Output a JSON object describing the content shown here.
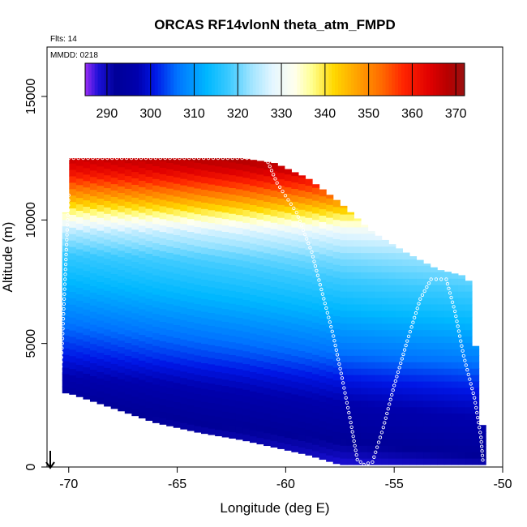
{
  "chart_data": {
    "type": "heatmap",
    "title": "ORCAS RF14vlonN theta_atm_FMPD",
    "annotations": {
      "flights": "Flts: 14",
      "date": "MMDD: 0218"
    },
    "xlabel": "Longitude (deg E)",
    "ylabel": "Altitude (m)",
    "xlim": [
      -71,
      -50
    ],
    "ylim": [
      0,
      17000
    ],
    "x_ticks": [
      -70,
      -65,
      -60,
      -55,
      -50
    ],
    "x_tick_labels": [
      "-70",
      "-65",
      "-60",
      "-55",
      "-50"
    ],
    "y_ticks": [
      0,
      5000,
      10000,
      15000
    ],
    "y_tick_labels": [
      "0",
      "5000",
      "10000",
      "15000"
    ],
    "colorbar": {
      "range": [
        285,
        372
      ],
      "ticks": [
        290,
        300,
        310,
        320,
        330,
        340,
        350,
        360,
        370
      ],
      "tick_labels": [
        "290",
        "300",
        "310",
        "320",
        "330",
        "340",
        "350",
        "360",
        "370"
      ],
      "stops": [
        {
          "v": 285,
          "color": "#9a2cf5"
        },
        {
          "v": 288,
          "color": "#1c10d8"
        },
        {
          "v": 292,
          "color": "#000097"
        },
        {
          "v": 297,
          "color": "#0000ad"
        },
        {
          "v": 301,
          "color": "#0016e6"
        },
        {
          "v": 306,
          "color": "#0072ff"
        },
        {
          "v": 313,
          "color": "#00b8ff"
        },
        {
          "v": 318,
          "color": "#3dcaff"
        },
        {
          "v": 323,
          "color": "#9fe4ff"
        },
        {
          "v": 328,
          "color": "#e4f6ff"
        },
        {
          "v": 333,
          "color": "#ffffee"
        },
        {
          "v": 337,
          "color": "#ffff90"
        },
        {
          "v": 342,
          "color": "#ffd800"
        },
        {
          "v": 347,
          "color": "#ffa600"
        },
        {
          "v": 353,
          "color": "#ff6a00"
        },
        {
          "v": 358,
          "color": "#ff2400"
        },
        {
          "v": 364,
          "color": "#e00000"
        },
        {
          "v": 368,
          "color": "#b80000"
        },
        {
          "v": 372,
          "color": "#9a1010"
        }
      ]
    },
    "theta_profile": [
      {
        "alt": 0,
        "theta": 285
      },
      {
        "alt": 600,
        "theta": 288
      },
      {
        "alt": 1500,
        "theta": 291
      },
      {
        "alt": 2500,
        "theta": 294
      },
      {
        "alt": 3500,
        "theta": 298
      },
      {
        "alt": 4500,
        "theta": 303
      },
      {
        "alt": 5500,
        "theta": 307
      },
      {
        "alt": 6500,
        "theta": 311
      },
      {
        "alt": 7500,
        "theta": 315
      },
      {
        "alt": 8500,
        "theta": 319
      },
      {
        "alt": 9500,
        "theta": 326
      },
      {
        "alt": 10000,
        "theta": 334
      },
      {
        "alt": 10500,
        "theta": 342
      },
      {
        "alt": 11000,
        "theta": 350
      },
      {
        "alt": 11500,
        "theta": 357
      },
      {
        "alt": 12000,
        "theta": 364
      },
      {
        "alt": 12500,
        "theta": 368
      }
    ],
    "data_extent": [
      {
        "lon": -70.3,
        "bottom": 3000,
        "top": 7800
      },
      {
        "lon": -70.0,
        "bottom": 3000,
        "top": 12500
      },
      {
        "lon": -68.0,
        "bottom": 2400,
        "top": 12500
      },
      {
        "lon": -66.0,
        "bottom": 1800,
        "top": 12500
      },
      {
        "lon": -64.0,
        "bottom": 1400,
        "top": 12500
      },
      {
        "lon": -62.0,
        "bottom": 1100,
        "top": 12500
      },
      {
        "lon": -60.5,
        "bottom": 800,
        "top": 12300
      },
      {
        "lon": -59.0,
        "bottom": 500,
        "top": 11700
      },
      {
        "lon": -57.5,
        "bottom": 100,
        "top": 10700
      },
      {
        "lon": -56.0,
        "bottom": 100,
        "top": 9500
      },
      {
        "lon": -54.5,
        "bottom": 100,
        "top": 8700
      },
      {
        "lon": -53.0,
        "bottom": 100,
        "top": 8000
      },
      {
        "lon": -51.6,
        "bottom": 100,
        "top": 7700
      },
      {
        "lon": -51.3,
        "bottom": 100,
        "top": 5300
      },
      {
        "lon": -50.9,
        "bottom": 100,
        "top": 1300
      }
    ],
    "flight_track": [
      [
        -70.0,
        12500
      ],
      [
        -66.0,
        12500
      ],
      [
        -60.9,
        12500
      ],
      [
        -60.4,
        11500
      ],
      [
        -59.5,
        10300
      ],
      [
        -58.8,
        8700
      ],
      [
        -58.3,
        7000
      ],
      [
        -57.8,
        5300
      ],
      [
        -57.4,
        3600
      ],
      [
        -57.0,
        1800
      ],
      [
        -56.7,
        300
      ],
      [
        -56.4,
        100
      ],
      [
        -56.0,
        200
      ],
      [
        -55.5,
        1600
      ],
      [
        -55.0,
        3300
      ],
      [
        -54.4,
        5100
      ],
      [
        -53.8,
        6800
      ],
      [
        -53.3,
        7600
      ],
      [
        -52.6,
        7600
      ],
      [
        -52.2,
        6300
      ],
      [
        -51.8,
        4500
      ],
      [
        -51.3,
        2800
      ],
      [
        -51.0,
        1200
      ],
      [
        -50.9,
        100
      ],
      [
        -70.0,
        11000
      ],
      [
        -70.1,
        9000
      ],
      [
        -70.2,
        7000
      ],
      [
        -70.3,
        5000
      ],
      [
        -70.4,
        3500
      ],
      [
        -70.5,
        3000
      ]
    ]
  }
}
